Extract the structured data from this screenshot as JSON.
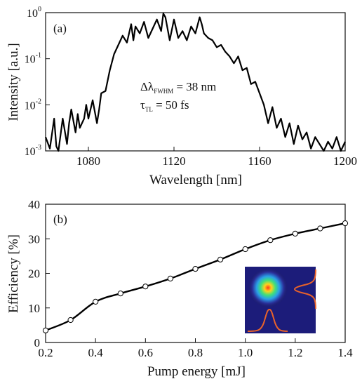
{
  "chart_data": [
    {
      "panel": "(a)",
      "type": "line",
      "xlabel": "Wavelength [nm]",
      "ylabel": "Intensity [a.u.]",
      "xlim": [
        1060,
        1200
      ],
      "ylim_log10": [
        -3,
        0
      ],
      "yscale": "log",
      "xticks": [
        1080,
        1120,
        1160,
        1200
      ],
      "yticks": [
        {
          "base": "10",
          "exp": "-3",
          "v": -3
        },
        {
          "base": "10",
          "exp": "-2",
          "v": -2
        },
        {
          "base": "10",
          "exp": "-1",
          "v": -1
        },
        {
          "base": "10",
          "exp": "0",
          "v": 0
        }
      ],
      "annotations": {
        "bandwidth": {
          "symbol": "Δλ",
          "sub": "FWHM",
          "value": " = 38 nm"
        },
        "pulse": {
          "symbol": "τ",
          "sub": "TL",
          "value": " = 50 fs"
        }
      },
      "series": [
        {
          "x": [
            1060,
            1062,
            1064,
            1065,
            1066,
            1068,
            1070,
            1071,
            1072,
            1074,
            1075,
            1076,
            1078,
            1079,
            1080,
            1082,
            1084,
            1085,
            1086,
            1088,
            1090,
            1092,
            1094,
            1096,
            1098,
            1100,
            1101,
            1102,
            1104,
            1106,
            1108,
            1110,
            1112,
            1114,
            1115,
            1116,
            1118,
            1120,
            1122,
            1124,
            1126,
            1128,
            1130,
            1132,
            1133,
            1134,
            1136,
            1138,
            1140,
            1142,
            1144,
            1146,
            1148,
            1150,
            1152,
            1154,
            1156,
            1158,
            1160,
            1162,
            1164,
            1166,
            1168,
            1170,
            1172,
            1174,
            1176,
            1178,
            1180,
            1182,
            1184,
            1186,
            1188,
            1190,
            1192,
            1194,
            1196,
            1198,
            1200
          ],
          "y": [
            -2.7,
            -2.95,
            -2.3,
            -2.9,
            -3.0,
            -2.3,
            -2.85,
            -2.4,
            -2.1,
            -2.6,
            -2.2,
            -2.5,
            -2.3,
            -2.0,
            -2.3,
            -1.9,
            -2.4,
            -2.1,
            -1.75,
            -1.7,
            -1.25,
            -0.9,
            -0.7,
            -0.5,
            -0.65,
            -0.25,
            -0.6,
            -0.3,
            -0.45,
            -0.2,
            -0.55,
            -0.35,
            -0.15,
            -0.4,
            -0.02,
            -0.1,
            -0.6,
            -0.15,
            -0.55,
            -0.4,
            -0.6,
            -0.3,
            -0.45,
            -0.1,
            -0.25,
            -0.45,
            -0.55,
            -0.6,
            -0.75,
            -0.7,
            -0.85,
            -0.95,
            -1.1,
            -0.95,
            -1.25,
            -1.2,
            -1.55,
            -1.5,
            -1.75,
            -2.0,
            -2.4,
            -2.05,
            -2.5,
            -2.3,
            -2.7,
            -2.4,
            -2.85,
            -2.45,
            -2.75,
            -2.6,
            -2.95,
            -2.7,
            -2.85,
            -3.0,
            -2.8,
            -2.95,
            -2.7,
            -3.0,
            -2.8
          ]
        }
      ]
    },
    {
      "panel": "(b)",
      "type": "line",
      "xlabel": "Pump energy [mJ]",
      "ylabel": "Efficiency [%]",
      "xlim": [
        0.2,
        1.4
      ],
      "ylim": [
        0,
        40
      ],
      "xticks": [
        "0.2",
        "0.4",
        "0.6",
        "0.8",
        "1.0",
        "1.2",
        "1.4"
      ],
      "yticks": [
        "0",
        "10",
        "20",
        "30",
        "40"
      ],
      "series": [
        {
          "x": [
            0.2,
            0.3,
            0.4,
            0.5,
            0.6,
            0.7,
            0.8,
            0.9,
            1.0,
            1.1,
            1.2,
            1.3,
            1.4
          ],
          "y": [
            3.5,
            6.5,
            11.8,
            14.2,
            16.2,
            18.5,
            21.3,
            24.0,
            27.0,
            29.6,
            31.5,
            33.0,
            34.5
          ]
        }
      ]
    }
  ]
}
